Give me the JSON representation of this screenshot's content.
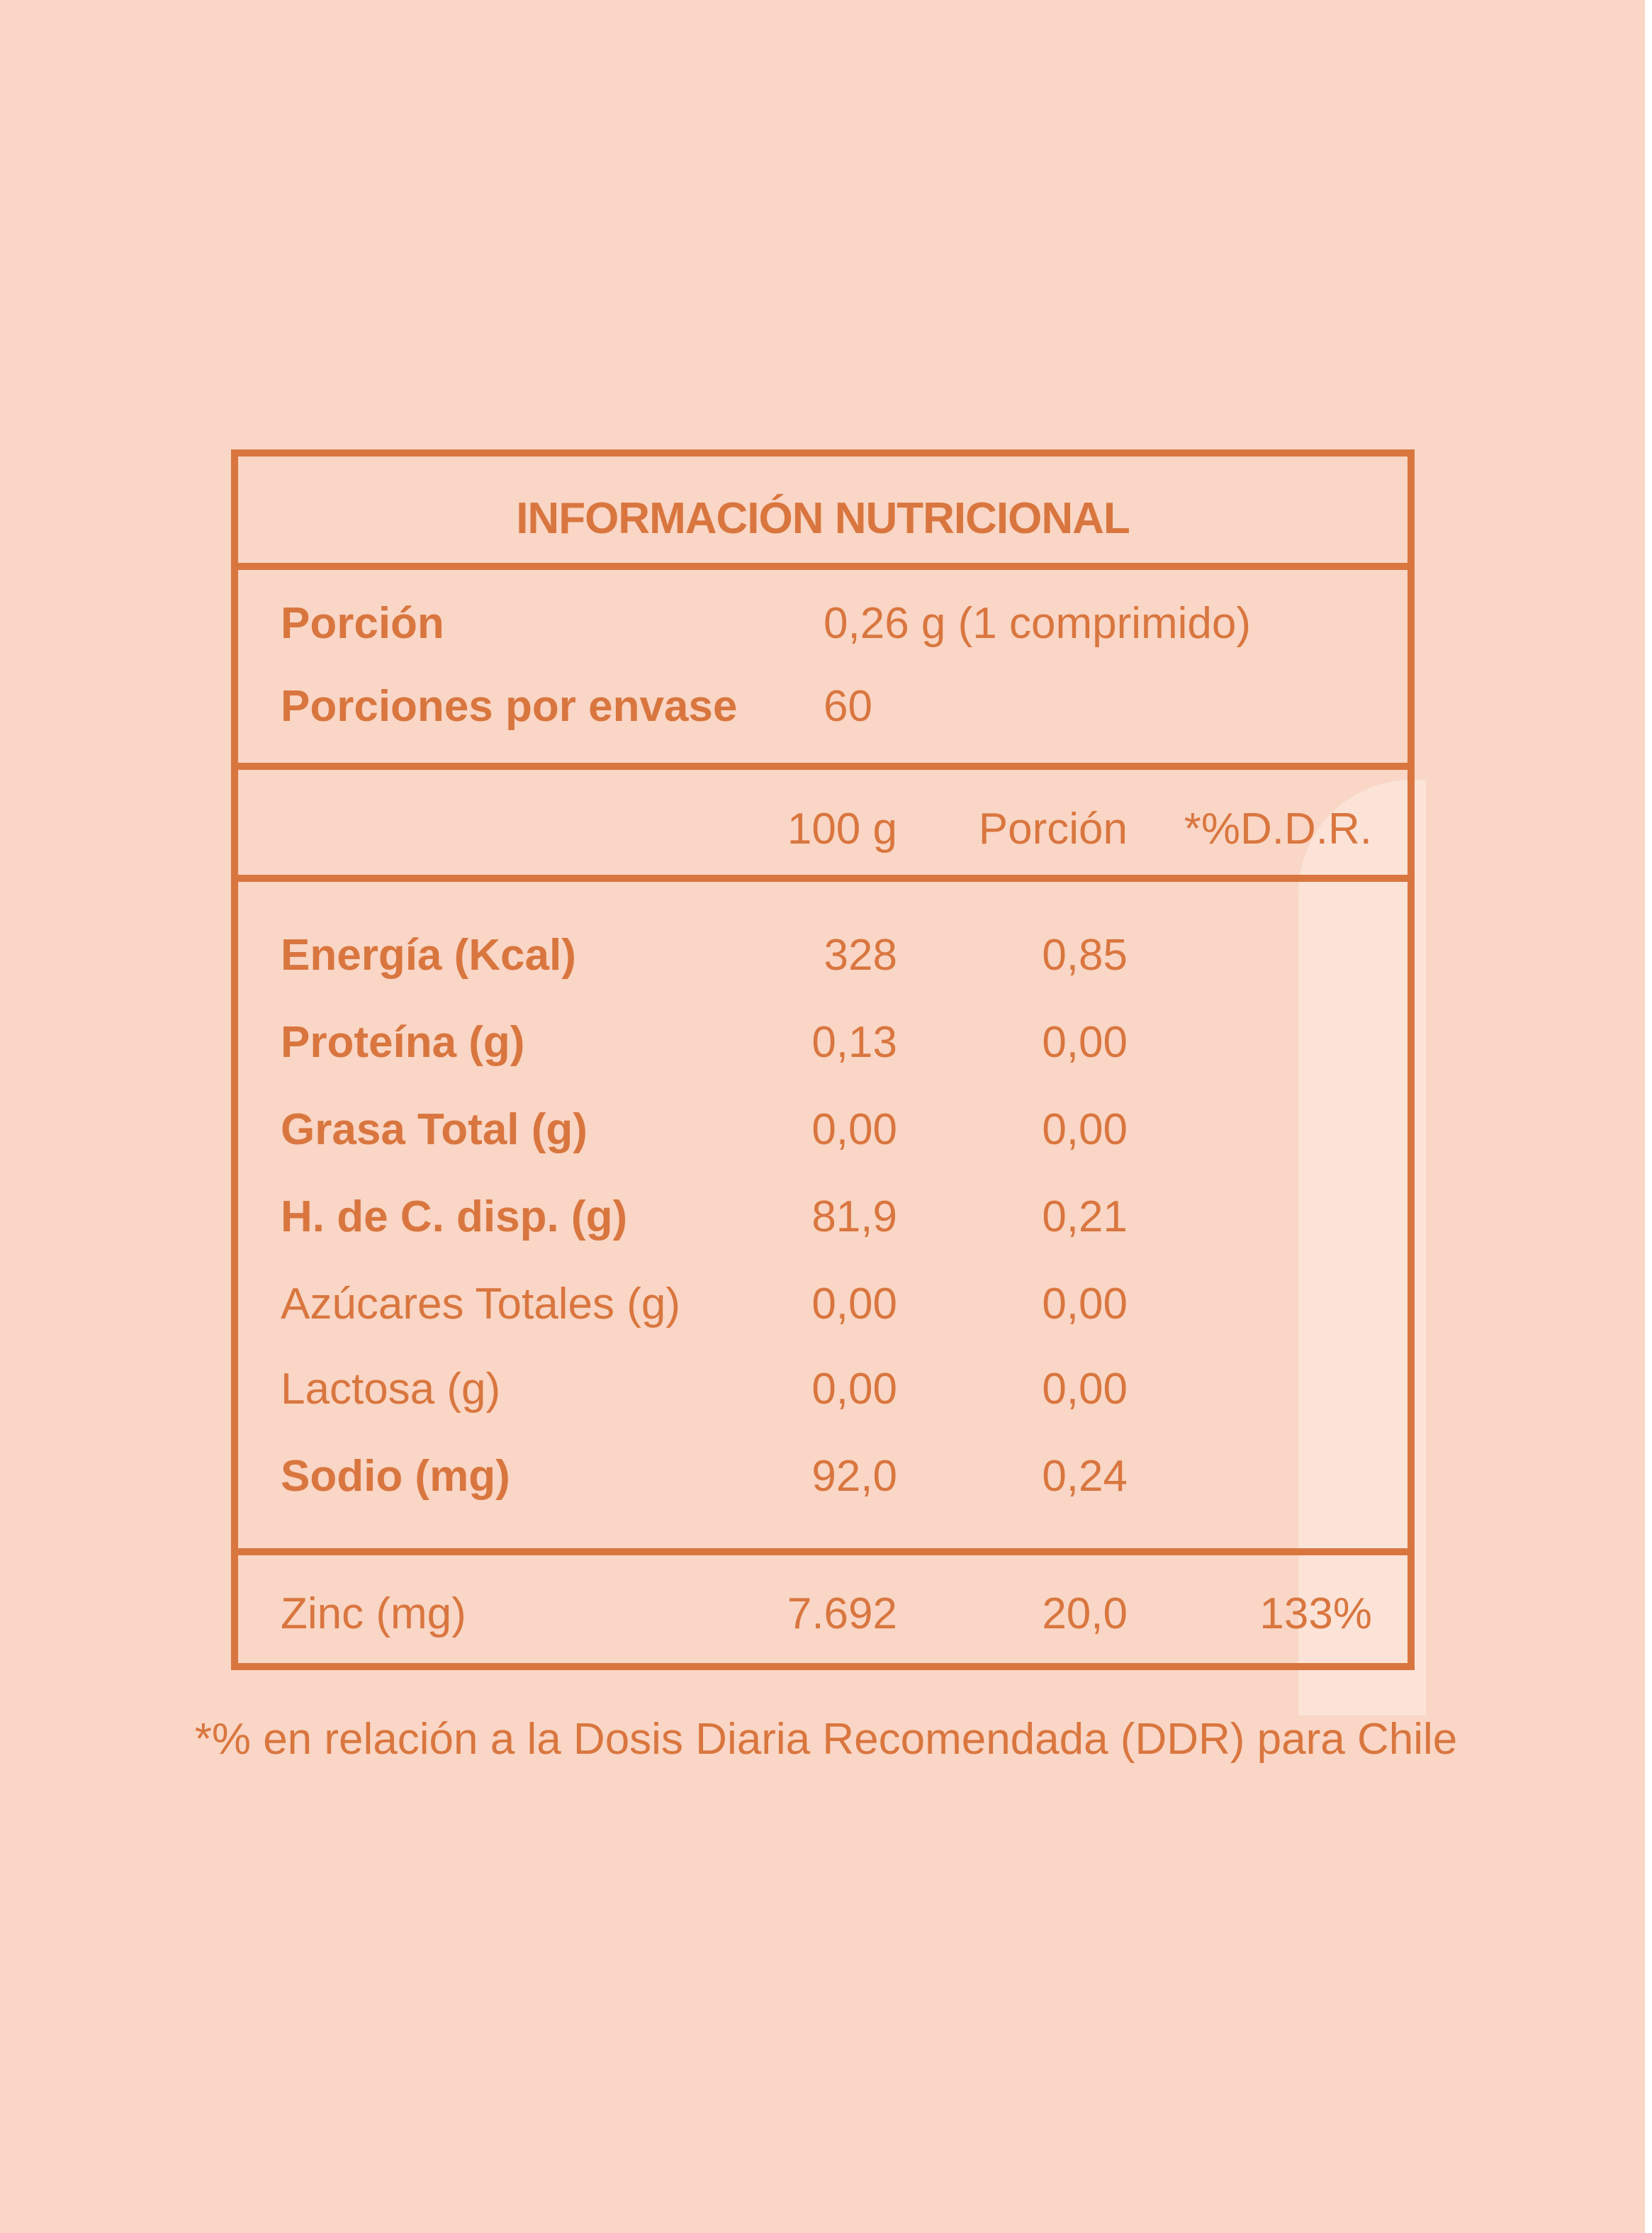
{
  "title": "INFORMACIÓN NUTRICIONAL",
  "serving": {
    "portion_label": "Porción",
    "portion_value": "0,26 g (1 comprimido)",
    "servings_label": "Porciones por envase",
    "servings_value": "60"
  },
  "columns": {
    "per100": "100 g",
    "per_portion": "Porción",
    "ddr": "*%D.D.R."
  },
  "rows": [
    {
      "label": "Energía (Kcal)",
      "per100": "328",
      "portion": "0,85",
      "ddr": ""
    },
    {
      "label": "Proteína (g)",
      "per100": "0,13",
      "portion": "0,00",
      "ddr": ""
    },
    {
      "label": "Grasa Total (g)",
      "per100": "0,00",
      "portion": "0,00",
      "ddr": ""
    },
    {
      "label": "H. de C. disp. (g)",
      "per100": "81,9",
      "portion": "0,21",
      "ddr": ""
    },
    {
      "label": "Azúcares Totales (g)",
      "per100": "0,00",
      "portion": "0,00",
      "ddr": ""
    },
    {
      "label": "Lactosa (g)",
      "per100": "0,00",
      "portion": "0,00",
      "ddr": ""
    },
    {
      "label": "Sodio (mg)",
      "per100": "92,0",
      "portion": "0,24",
      "ddr": ""
    }
  ],
  "zinc": {
    "label": "Zinc (mg)",
    "per100": "7.692",
    "portion": "20,0",
    "ddr": "133%"
  },
  "footnote": "*% en relación a la Dosis Diaria Recomendada (DDR) para Chile",
  "colors": {
    "accent": "#d9763f",
    "background": "#f9d6c5"
  }
}
